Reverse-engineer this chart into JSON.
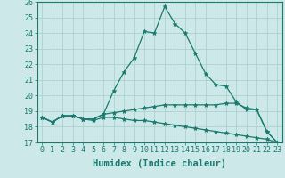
{
  "xlabel": "Humidex (Indice chaleur)",
  "x": [
    0,
    1,
    2,
    3,
    4,
    5,
    6,
    7,
    8,
    9,
    10,
    11,
    12,
    13,
    14,
    15,
    16,
    17,
    18,
    19,
    20,
    21,
    22,
    23
  ],
  "line1": [
    18.6,
    18.3,
    18.7,
    18.7,
    18.5,
    18.5,
    18.8,
    20.3,
    21.5,
    22.4,
    24.1,
    24.0,
    25.7,
    24.6,
    24.0,
    22.7,
    21.4,
    20.7,
    20.6,
    19.6,
    19.1,
    19.1,
    17.7,
    17.0
  ],
  "line2": [
    18.6,
    18.3,
    18.7,
    18.7,
    18.5,
    18.5,
    18.8,
    18.9,
    19.0,
    19.1,
    19.2,
    19.3,
    19.4,
    19.4,
    19.4,
    19.4,
    19.4,
    19.4,
    19.5,
    19.5,
    19.2,
    19.1,
    17.7,
    17.0
  ],
  "line3": [
    18.6,
    18.3,
    18.7,
    18.7,
    18.5,
    18.4,
    18.6,
    18.6,
    18.5,
    18.4,
    18.4,
    18.3,
    18.2,
    18.1,
    18.0,
    17.9,
    17.8,
    17.7,
    17.6,
    17.5,
    17.4,
    17.3,
    17.2,
    17.0
  ],
  "line_color": "#1a7a6e",
  "bg_color": "#cce8e8",
  "grid_color": "#aacccc",
  "ylim": [
    17,
    26
  ],
  "yticks": [
    17,
    18,
    19,
    20,
    21,
    22,
    23,
    24,
    25,
    26
  ],
  "xticks": [
    0,
    1,
    2,
    3,
    4,
    5,
    6,
    7,
    8,
    9,
    10,
    11,
    12,
    13,
    14,
    15,
    16,
    17,
    18,
    19,
    20,
    21,
    22,
    23
  ],
  "marker": "*",
  "marker_size": 3.5,
  "linewidth": 0.9,
  "tick_fontsize": 6.0,
  "xlabel_fontsize": 7.5
}
